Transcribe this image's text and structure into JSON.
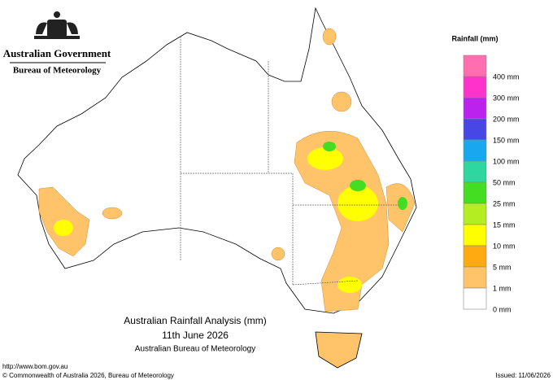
{
  "header": {
    "government": "Australian Government",
    "agency": "Bureau of Meteorology"
  },
  "legend": {
    "title": "Rainfall (mm)",
    "items": [
      {
        "color": "#ff6fb0",
        "label": "400 mm"
      },
      {
        "color": "#ff33cc",
        "label": "300 mm"
      },
      {
        "color": "#bb22ee",
        "label": "200 mm"
      },
      {
        "color": "#4747e6",
        "label": "150 mm"
      },
      {
        "color": "#19a8f0",
        "label": "100 mm"
      },
      {
        "color": "#2ed6a0",
        "label": "50 mm"
      },
      {
        "color": "#44dd22",
        "label": "25 mm"
      },
      {
        "color": "#b4ee22",
        "label": "15 mm"
      },
      {
        "color": "#ffff00",
        "label": "10 mm"
      },
      {
        "color": "#ffaa11",
        "label": "5 mm"
      },
      {
        "color": "#ffc46a",
        "label": "1 mm"
      },
      {
        "color": "#ffffff",
        "label": "0 mm"
      }
    ]
  },
  "map_title": {
    "line1": "Australian Rainfall Analysis (mm)",
    "line2": "11th June 2026",
    "line3": "Australian Bureau of Meteorology"
  },
  "footer": {
    "url": "http://www.bom.gov.au",
    "copyright": "© Commonwealth of Australia 2026, Bureau of Meteorology",
    "issued": "Issued: 11/06/2026"
  }
}
